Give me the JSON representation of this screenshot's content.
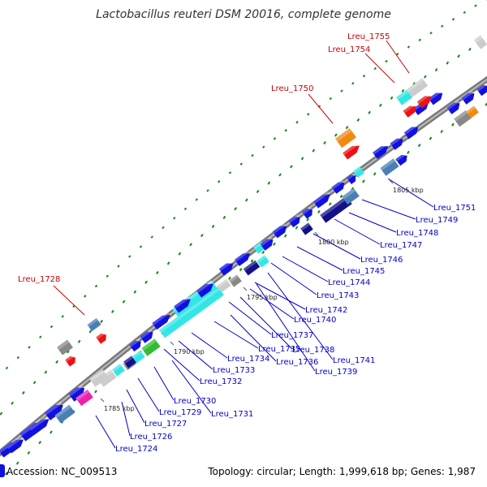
{
  "title": "Lactobacillus reuteri DSM 20016, complete genome",
  "footer": {
    "accession": "Accession: NC_009513",
    "summary": "Topology: circular; Length: 1,999,618 bp; Genes: 1,987"
  },
  "ticks": [
    {
      "label": "1785 kbp"
    },
    {
      "label": "1790 kbp"
    },
    {
      "label": "1795 kbp"
    },
    {
      "label": "1800 kbp"
    },
    {
      "label": "1805 kbp"
    }
  ],
  "blue_labels": [
    "Lreu_1724",
    "Lreu_1726",
    "Lreu_1727",
    "Lreu_1729",
    "Lreu_1730",
    "Lreu_1731",
    "Lreu_1732",
    "Lreu_1733",
    "Lreu_1734",
    "Lreu_1735",
    "Lreu_1736",
    "Lreu_1737",
    "Lreu_1738",
    "Lreu_1739",
    "Lreu_1740",
    "Lreu_1741",
    "Lreu_1742",
    "Lreu_1743",
    "Lreu_1744",
    "Lreu_1745",
    "Lreu_1746",
    "Lreu_1747",
    "Lreu_1748",
    "Lreu_1749",
    "Lreu_1751"
  ],
  "red_labels": [
    "Lreu_1728",
    "Lreu_1750",
    "Lreu_1754",
    "Lreu_1755"
  ],
  "colors": {
    "cds": "#1010e0",
    "dark_cds": "#10108a",
    "cyan": "#33e6e6",
    "red": "#ee1111",
    "orange": "#f08a10",
    "gray": "#888888",
    "light_gray": "#cccccc",
    "steel": "#4a7fb5",
    "green": "#33bb33",
    "magenta": "#ee22aa",
    "backbone": "#999999",
    "tick_green": "#118811",
    "label_blue": "#0000cc",
    "label_red": "#cc0000"
  }
}
